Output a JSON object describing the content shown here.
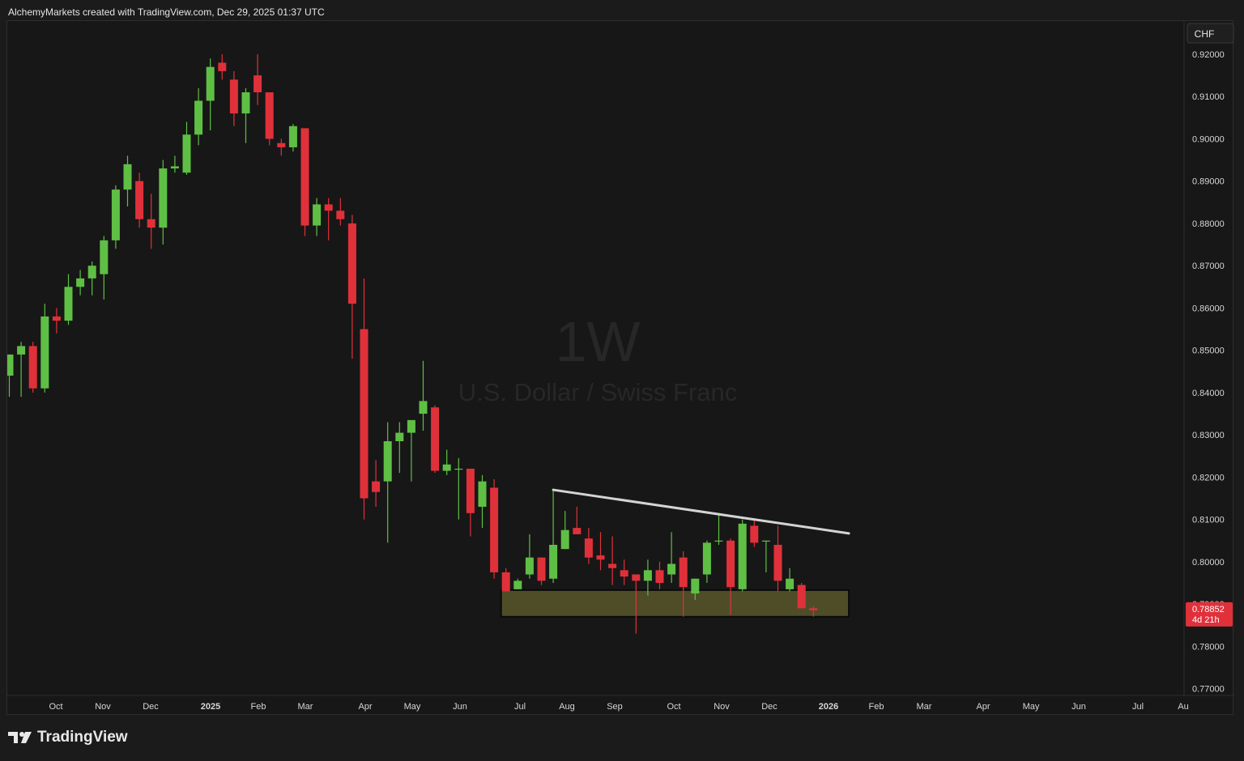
{
  "header": {
    "attribution": "AlchemyMarkets created with TradingView.com, Dec 29, 2025 01:37 UTC"
  },
  "watermark": {
    "interval": "1W",
    "symbol_name": "U.S. Dollar / Swiss Franc"
  },
  "currency_badge": "CHF",
  "price_axis": {
    "ticks": [
      "0.92000",
      "0.91000",
      "0.90000",
      "0.89000",
      "0.88000",
      "0.87000",
      "0.86000",
      "0.85000",
      "0.84000",
      "0.83000",
      "0.82000",
      "0.81000",
      "0.80000",
      "0.79000",
      "0.78000",
      "0.77000"
    ]
  },
  "time_axis": {
    "labels": [
      "Oct",
      "Nov",
      "Dec",
      "2025",
      "Feb",
      "Mar",
      "Apr",
      "May",
      "Jun",
      "Jul",
      "Aug",
      "Sep",
      "Oct",
      "Nov",
      "Dec",
      "2026",
      "Feb",
      "Mar",
      "Apr",
      "May",
      "Jun",
      "Jul",
      "Au"
    ],
    "bold_labels": [
      "2025",
      "2026"
    ]
  },
  "last_price": {
    "value": "0.78852",
    "countdown": "4d 21h"
  },
  "brand": {
    "name": "TradingView"
  },
  "colors": {
    "up": "#5fbf45",
    "down": "#e0313a",
    "trendline": "#d4d4d4",
    "zone_fill": "#55532a",
    "background": "#171717",
    "price_label_bg": "#e0313a"
  },
  "chart_data": {
    "type": "candlestick",
    "interval": "1W",
    "symbol": "U.S. Dollar / Swiss Franc",
    "ylim": [
      0.77,
      0.92
    ],
    "candles": [
      {
        "date": "2024-09-16",
        "o": 0.844,
        "h": 0.849,
        "l": 0.839,
        "c": 0.849
      },
      {
        "date": "2024-09-23",
        "o": 0.849,
        "h": 0.852,
        "l": 0.839,
        "c": 0.851
      },
      {
        "date": "2024-09-30",
        "o": 0.851,
        "h": 0.852,
        "l": 0.84,
        "c": 0.841
      },
      {
        "date": "2024-10-07",
        "o": 0.841,
        "h": 0.861,
        "l": 0.84,
        "c": 0.858
      },
      {
        "date": "2024-10-14",
        "o": 0.858,
        "h": 0.86,
        "l": 0.854,
        "c": 0.857
      },
      {
        "date": "2024-10-21",
        "o": 0.857,
        "h": 0.868,
        "l": 0.856,
        "c": 0.865
      },
      {
        "date": "2024-10-28",
        "o": 0.865,
        "h": 0.869,
        "l": 0.863,
        "c": 0.867
      },
      {
        "date": "2024-11-04",
        "o": 0.867,
        "h": 0.871,
        "l": 0.863,
        "c": 0.87
      },
      {
        "date": "2024-11-11",
        "o": 0.868,
        "h": 0.877,
        "l": 0.862,
        "c": 0.876
      },
      {
        "date": "2024-11-18",
        "o": 0.876,
        "h": 0.889,
        "l": 0.874,
        "c": 0.888
      },
      {
        "date": "2024-11-25",
        "o": 0.888,
        "h": 0.896,
        "l": 0.884,
        "c": 0.894
      },
      {
        "date": "2024-12-02",
        "o": 0.89,
        "h": 0.892,
        "l": 0.879,
        "c": 0.881
      },
      {
        "date": "2024-12-09",
        "o": 0.881,
        "h": 0.887,
        "l": 0.874,
        "c": 0.879
      },
      {
        "date": "2024-12-16",
        "o": 0.879,
        "h": 0.895,
        "l": 0.875,
        "c": 0.893
      },
      {
        "date": "2024-12-23",
        "o": 0.893,
        "h": 0.896,
        "l": 0.892,
        "c": 0.8935
      },
      {
        "date": "2024-12-30",
        "o": 0.892,
        "h": 0.904,
        "l": 0.8915,
        "c": 0.901
      },
      {
        "date": "2025-01-06",
        "o": 0.901,
        "h": 0.912,
        "l": 0.8985,
        "c": 0.909
      },
      {
        "date": "2025-01-13",
        "o": 0.909,
        "h": 0.919,
        "l": 0.902,
        "c": 0.917
      },
      {
        "date": "2025-01-20",
        "o": 0.918,
        "h": 0.92,
        "l": 0.914,
        "c": 0.916
      },
      {
        "date": "2025-01-27",
        "o": 0.914,
        "h": 0.916,
        "l": 0.903,
        "c": 0.906
      },
      {
        "date": "2025-02-03",
        "o": 0.906,
        "h": 0.912,
        "l": 0.899,
        "c": 0.911
      },
      {
        "date": "2025-02-10",
        "o": 0.915,
        "h": 0.92,
        "l": 0.908,
        "c": 0.911
      },
      {
        "date": "2025-02-17",
        "o": 0.911,
        "h": 0.911,
        "l": 0.8985,
        "c": 0.9
      },
      {
        "date": "2025-02-24",
        "o": 0.899,
        "h": 0.9,
        "l": 0.896,
        "c": 0.898
      },
      {
        "date": "2025-03-03",
        "o": 0.898,
        "h": 0.9035,
        "l": 0.897,
        "c": 0.903
      },
      {
        "date": "2025-03-10",
        "o": 0.9025,
        "h": 0.9025,
        "l": 0.877,
        "c": 0.8795
      },
      {
        "date": "2025-03-17",
        "o": 0.8795,
        "h": 0.886,
        "l": 0.877,
        "c": 0.8845
      },
      {
        "date": "2025-03-24",
        "o": 0.8845,
        "h": 0.886,
        "l": 0.876,
        "c": 0.883
      },
      {
        "date": "2025-03-31",
        "o": 0.883,
        "h": 0.886,
        "l": 0.8795,
        "c": 0.881
      },
      {
        "date": "2025-04-07",
        "o": 0.88,
        "h": 0.882,
        "l": 0.848,
        "c": 0.861
      },
      {
        "date": "2025-04-14",
        "o": 0.855,
        "h": 0.867,
        "l": 0.81,
        "c": 0.815
      },
      {
        "date": "2025-04-21",
        "o": 0.819,
        "h": 0.824,
        "l": 0.813,
        "c": 0.8165
      },
      {
        "date": "2025-04-28",
        "o": 0.819,
        "h": 0.833,
        "l": 0.8045,
        "c": 0.8285
      },
      {
        "date": "2025-05-05",
        "o": 0.8285,
        "h": 0.833,
        "l": 0.821,
        "c": 0.8305
      },
      {
        "date": "2025-05-12",
        "o": 0.8305,
        "h": 0.833,
        "l": 0.819,
        "c": 0.8335
      },
      {
        "date": "2025-05-19",
        "o": 0.835,
        "h": 0.8475,
        "l": 0.831,
        "c": 0.838
      },
      {
        "date": "2025-05-26",
        "o": 0.8365,
        "h": 0.837,
        "l": 0.821,
        "c": 0.8215
      },
      {
        "date": "2025-06-02",
        "o": 0.8215,
        "h": 0.8265,
        "l": 0.8205,
        "c": 0.823
      },
      {
        "date": "2025-06-09",
        "o": 0.822,
        "h": 0.8245,
        "l": 0.81,
        "c": 0.822
      },
      {
        "date": "2025-06-16",
        "o": 0.822,
        "h": 0.822,
        "l": 0.806,
        "c": 0.8115
      },
      {
        "date": "2025-06-23",
        "o": 0.813,
        "h": 0.8205,
        "l": 0.808,
        "c": 0.819
      },
      {
        "date": "2025-06-30",
        "o": 0.8175,
        "h": 0.8195,
        "l": 0.796,
        "c": 0.7975
      },
      {
        "date": "2025-07-07",
        "o": 0.7975,
        "h": 0.7985,
        "l": 0.793,
        "c": 0.793
      },
      {
        "date": "2025-07-14",
        "o": 0.7935,
        "h": 0.796,
        "l": 0.7935,
        "c": 0.7955
      },
      {
        "date": "2025-07-21",
        "o": 0.797,
        "h": 0.8065,
        "l": 0.796,
        "c": 0.801
      },
      {
        "date": "2025-07-28",
        "o": 0.801,
        "h": 0.801,
        "l": 0.7945,
        "c": 0.7955
      },
      {
        "date": "2025-08-04",
        "o": 0.796,
        "h": 0.817,
        "l": 0.795,
        "c": 0.804
      },
      {
        "date": "2025-08-11",
        "o": 0.803,
        "h": 0.812,
        "l": 0.803,
        "c": 0.8075
      },
      {
        "date": "2025-08-18",
        "o": 0.808,
        "h": 0.813,
        "l": 0.807,
        "c": 0.8065
      },
      {
        "date": "2025-08-25",
        "o": 0.8055,
        "h": 0.808,
        "l": 0.7995,
        "c": 0.801
      },
      {
        "date": "2025-09-01",
        "o": 0.8015,
        "h": 0.807,
        "l": 0.798,
        "c": 0.8005
      },
      {
        "date": "2025-09-08",
        "o": 0.7995,
        "h": 0.806,
        "l": 0.7945,
        "c": 0.7985
      },
      {
        "date": "2025-09-15",
        "o": 0.798,
        "h": 0.8005,
        "l": 0.7945,
        "c": 0.7965
      },
      {
        "date": "2025-09-22",
        "o": 0.797,
        "h": 0.797,
        "l": 0.783,
        "c": 0.7955
      },
      {
        "date": "2025-09-29",
        "o": 0.7955,
        "h": 0.8005,
        "l": 0.792,
        "c": 0.798
      },
      {
        "date": "2025-10-06",
        "o": 0.798,
        "h": 0.8,
        "l": 0.7935,
        "c": 0.795
      },
      {
        "date": "2025-10-13",
        "o": 0.797,
        "h": 0.807,
        "l": 0.795,
        "c": 0.7995
      },
      {
        "date": "2025-10-20",
        "o": 0.801,
        "h": 0.8025,
        "l": 0.787,
        "c": 0.794
      },
      {
        "date": "2025-10-27",
        "o": 0.7925,
        "h": 0.796,
        "l": 0.791,
        "c": 0.796
      },
      {
        "date": "2025-11-03",
        "o": 0.797,
        "h": 0.805,
        "l": 0.795,
        "c": 0.8045
      },
      {
        "date": "2025-11-10",
        "o": 0.805,
        "h": 0.811,
        "l": 0.804,
        "c": 0.805
      },
      {
        "date": "2025-11-17",
        "o": 0.805,
        "h": 0.8055,
        "l": 0.7875,
        "c": 0.794
      },
      {
        "date": "2025-11-24",
        "o": 0.7935,
        "h": 0.81,
        "l": 0.793,
        "c": 0.809
      },
      {
        "date": "2025-12-01",
        "o": 0.8085,
        "h": 0.81,
        "l": 0.8035,
        "c": 0.8045
      },
      {
        "date": "2025-12-08",
        "o": 0.805,
        "h": 0.805,
        "l": 0.7975,
        "c": 0.805
      },
      {
        "date": "2025-12-15",
        "o": 0.804,
        "h": 0.8085,
        "l": 0.793,
        "c": 0.7955
      },
      {
        "date": "2025-12-22",
        "o": 0.7935,
        "h": 0.7985,
        "l": 0.793,
        "c": 0.796
      },
      {
        "date": "2025-12-29",
        "o": 0.7945,
        "h": 0.795,
        "l": 0.789,
        "c": 0.789
      },
      {
        "date": "2026-01-05",
        "o": 0.789,
        "h": 0.7895,
        "l": 0.787,
        "c": 0.78852
      }
    ],
    "trendline": {
      "from": {
        "date": "2025-08-04",
        "price": 0.817
      },
      "to": {
        "date": "2026-01-26",
        "price": 0.8067
      }
    },
    "support_zone": {
      "from_date": "2025-07-07",
      "to_date": "2026-01-26",
      "top": 0.7933,
      "bottom": 0.787
    }
  }
}
